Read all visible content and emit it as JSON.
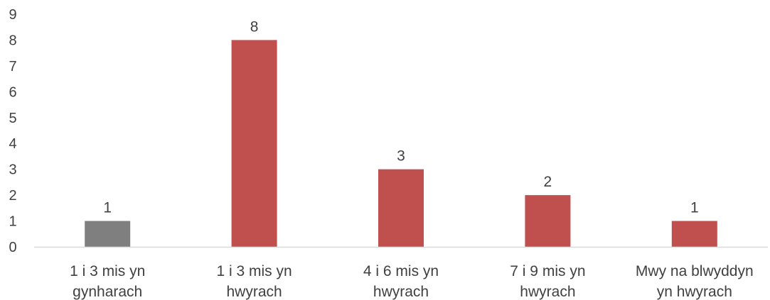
{
  "chart_data": {
    "type": "bar",
    "categories": [
      [
        "1 i 3 mis yn",
        "gynharach"
      ],
      [
        "1 i 3 mis yn",
        "hwyrach"
      ],
      [
        "4 i 6 mis yn",
        "hwyrach"
      ],
      [
        "7 i 9 mis yn",
        "hwyrach"
      ],
      [
        "Mwy na blwyddyn",
        "yn hwyrach"
      ]
    ],
    "values": [
      1,
      8,
      3,
      2,
      1
    ],
    "data_labels": [
      "1",
      "8",
      "3",
      "2",
      "1"
    ],
    "bar_colors": [
      "#7f7f7f",
      "#c0504d",
      "#c0504d",
      "#c0504d",
      "#c0504d"
    ],
    "y_ticks": [
      "0",
      "1",
      "2",
      "3",
      "4",
      "5",
      "6",
      "7",
      "8",
      "9"
    ],
    "ylim": [
      0,
      9
    ],
    "grid": false,
    "legend": "none"
  }
}
